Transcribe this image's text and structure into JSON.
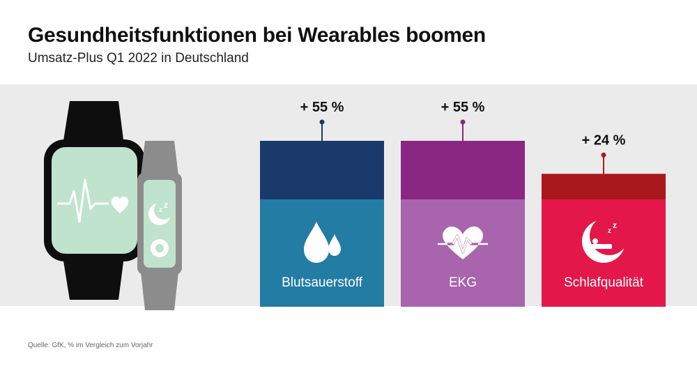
{
  "title": "Gesundheitsfunktionen bei Wearables boomen",
  "subtitle": "Umsatz-Plus Q1 2022 in Deutschland",
  "source": "Quelle: GfK, % im Vergleich zum Vorjahr",
  "chart_data": {
    "type": "bar",
    "categories": [
      "Blutsauerstoff",
      "EKG",
      "Schlafqualität"
    ],
    "values": [
      55,
      55,
      24
    ],
    "value_labels": [
      "+ 55 %",
      "+ 55 %",
      "+ 24 %"
    ],
    "unit": "%",
    "ylim": [
      0,
      55
    ],
    "grid": false,
    "legend": "none",
    "colors": {
      "Blutsauerstoff": {
        "top": "#1a3a6c",
        "bottom": "#237ca3"
      },
      "EKG": {
        "top": "#8a2782",
        "bottom": "#a864ad"
      },
      "Schlafqualität": {
        "top": "#a8181c",
        "bottom": "#e3174a"
      }
    },
    "icons": [
      "water-drops-icon",
      "heart-ekg-icon",
      "sleep-moon-icon"
    ]
  },
  "illustration": {
    "icons": [
      "smartwatch-icon",
      "fitness-band-icon",
      "heartbeat-line-icon",
      "heart-icon",
      "moon-zz-icon",
      "ring-icon"
    ],
    "colors": {
      "device": "#0e0e0e",
      "band": "#8c8c8c",
      "screen": "#bfe3cc"
    }
  }
}
